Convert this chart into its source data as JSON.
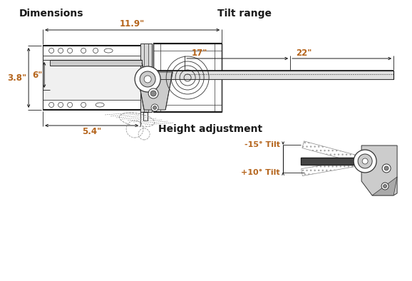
{
  "title_dimensions": "Dimensions",
  "title_tilt": "Tilt range",
  "title_height": "Height adjustment",
  "dim_width": "11.9\"",
  "dim_height_label": "3.8\"",
  "dim_depth": "5.4\"",
  "tilt_neg": "-15° Tilt",
  "tilt_pos": "+10° Tilt",
  "height_low": "6\"",
  "height_17": "17\"",
  "height_22": "22\"",
  "orange_color": "#b5651d",
  "dark_color": "#1a1a1a",
  "line_color": "#333333",
  "gray_color": "#888888",
  "bg_color": "#ffffff"
}
